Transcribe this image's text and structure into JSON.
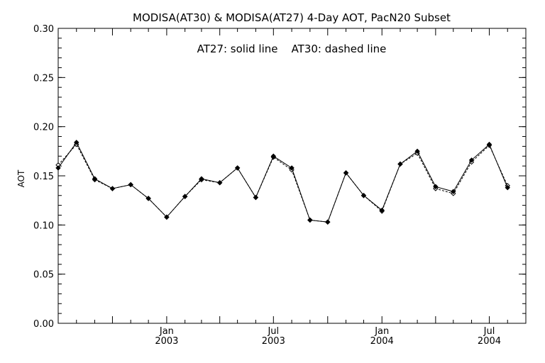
{
  "chart_data": {
    "type": "line",
    "title": "MODISA(AT30) & MODISA(AT27) 4-Day AOT, PacN20 Subset",
    "annotation": "AT27: solid line    AT30: dashed line",
    "ylabel": "AOT",
    "xlabel": "",
    "x_range": [
      "2002-07-01",
      "2004-09-01"
    ],
    "ylim": [
      0.0,
      0.3
    ],
    "y_ticks": [
      "0.00",
      "0.05",
      "0.10",
      "0.15",
      "0.20",
      "0.25",
      "0.30"
    ],
    "x_tick_labels": [
      {
        "date": "2003-01-01",
        "month": "Jan",
        "year": "2003"
      },
      {
        "date": "2003-07-01",
        "month": "Jul",
        "year": "2003"
      },
      {
        "date": "2004-01-01",
        "month": "Jan",
        "year": "2004"
      },
      {
        "date": "2004-07-01",
        "month": "Jul",
        "year": "2004"
      }
    ],
    "x_major_ticks": [
      "2002-10-01",
      "2003-01-01",
      "2003-04-01",
      "2003-07-01",
      "2003-10-01",
      "2004-01-01",
      "2004-04-01",
      "2004-07-01"
    ],
    "grid": false,
    "series": [
      {
        "name": "AT27",
        "line_style": "solid",
        "marker": "filled-diamond",
        "color": "#000000",
        "x": [
          "2002-07-01",
          "2002-08-01",
          "2002-09-01",
          "2002-10-01",
          "2002-11-01",
          "2002-12-01",
          "2003-01-01",
          "2003-02-01",
          "2003-03-01",
          "2003-04-01",
          "2003-05-01",
          "2003-06-01",
          "2003-07-01",
          "2003-08-01",
          "2003-09-01",
          "2003-10-01",
          "2003-11-01",
          "2003-12-01",
          "2004-01-01",
          "2004-02-01",
          "2004-03-01",
          "2004-04-01",
          "2004-05-01",
          "2004-06-01",
          "2004-07-01",
          "2004-08-01"
        ],
        "values": [
          0.158,
          0.184,
          0.147,
          0.137,
          0.141,
          0.127,
          0.108,
          0.129,
          0.147,
          0.143,
          0.158,
          0.128,
          0.17,
          0.158,
          0.105,
          0.103,
          0.153,
          0.13,
          0.115,
          0.162,
          0.175,
          0.139,
          0.134,
          0.166,
          0.182,
          0.138
        ]
      },
      {
        "name": "AT30",
        "line_style": "dashed",
        "marker": "open-diamond",
        "color": "#000000",
        "x": [
          "2002-07-01",
          "2002-08-01",
          "2002-09-01",
          "2002-10-01",
          "2002-11-01",
          "2002-12-01",
          "2003-01-01",
          "2003-02-01",
          "2003-03-01",
          "2003-04-01",
          "2003-05-01",
          "2003-06-01",
          "2003-07-01",
          "2003-08-01",
          "2003-09-01",
          "2003-10-01",
          "2003-11-01",
          "2003-12-01",
          "2004-01-01",
          "2004-02-01",
          "2004-03-01",
          "2004-04-01",
          "2004-05-01",
          "2004-06-01",
          "2004-07-01",
          "2004-08-01"
        ],
        "values": [
          0.161,
          0.182,
          0.146,
          0.137,
          0.141,
          0.127,
          0.108,
          0.129,
          0.146,
          0.143,
          0.158,
          0.128,
          0.169,
          0.156,
          0.105,
          0.103,
          0.153,
          0.13,
          0.114,
          0.162,
          0.173,
          0.137,
          0.132,
          0.164,
          0.181,
          0.14
        ]
      }
    ]
  }
}
